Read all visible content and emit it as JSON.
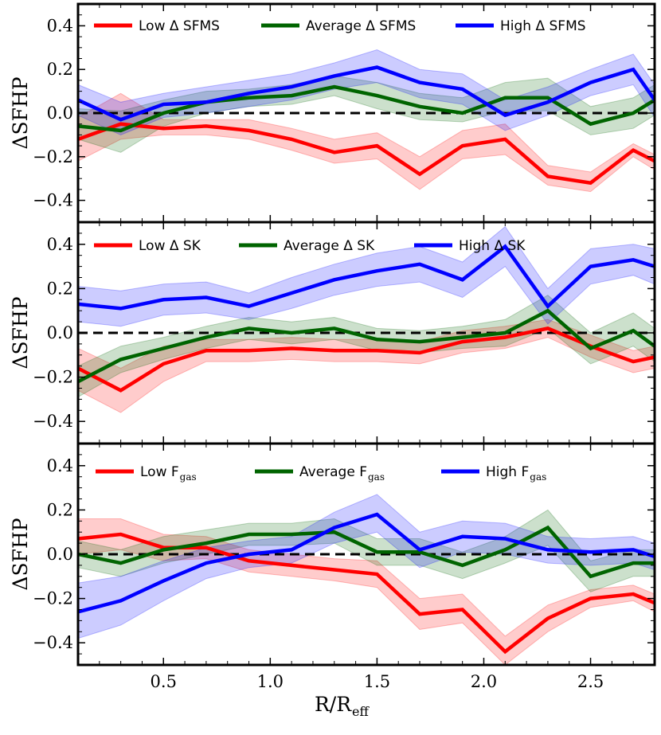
{
  "chart_data": [
    {
      "type": "line",
      "id": "sfms",
      "ylabel": "ΔSFHP",
      "xlim": [
        0.1,
        2.8
      ],
      "ylim": [
        -0.5,
        0.5
      ],
      "x": [
        0.1,
        0.3,
        0.5,
        0.7,
        0.9,
        1.1,
        1.3,
        1.5,
        1.7,
        1.9,
        2.1,
        2.3,
        2.5,
        2.7,
        2.8
      ],
      "reference_line": 0.0,
      "series": [
        {
          "name": "Low",
          "label_main": "Low Δ SFMS",
          "label_sub": "",
          "color": "#ff0000",
          "values": [
            -0.12,
            -0.05,
            -0.07,
            -0.06,
            -0.08,
            -0.12,
            -0.18,
            -0.15,
            -0.28,
            -0.15,
            -0.12,
            -0.29,
            -0.32,
            -0.17,
            -0.22
          ],
          "lower": [
            -0.22,
            -0.12,
            -0.1,
            -0.1,
            -0.12,
            -0.17,
            -0.23,
            -0.21,
            -0.35,
            -0.21,
            -0.19,
            -0.33,
            -0.36,
            -0.2,
            -0.26
          ],
          "upper": [
            -0.02,
            0.09,
            -0.03,
            -0.03,
            -0.03,
            -0.07,
            -0.12,
            -0.09,
            -0.2,
            -0.08,
            -0.05,
            -0.24,
            -0.27,
            -0.14,
            -0.19
          ]
        },
        {
          "name": "Average",
          "label_main": "Average Δ SFMS",
          "label_sub": "",
          "color": "#006400",
          "values": [
            -0.06,
            -0.08,
            0.0,
            0.05,
            0.07,
            0.08,
            0.12,
            0.08,
            0.03,
            0.0,
            0.07,
            0.07,
            -0.05,
            0.0,
            0.06
          ],
          "lower": [
            -0.12,
            -0.18,
            -0.06,
            0.0,
            0.03,
            0.04,
            0.08,
            0.02,
            -0.03,
            -0.04,
            0.01,
            0.01,
            -0.1,
            -0.07,
            -0.01
          ],
          "upper": [
            0.02,
            0.01,
            0.06,
            0.1,
            0.11,
            0.13,
            0.17,
            0.14,
            0.09,
            0.07,
            0.14,
            0.16,
            0.03,
            0.07,
            0.13
          ]
        },
        {
          "name": "High",
          "label_main": "High Δ SFMS",
          "label_sub": "",
          "color": "#0000ff",
          "values": [
            0.06,
            -0.03,
            0.04,
            0.05,
            0.09,
            0.12,
            0.17,
            0.21,
            0.14,
            0.11,
            -0.01,
            0.05,
            0.14,
            0.2,
            0.06
          ],
          "lower": [
            -0.01,
            -0.1,
            -0.02,
            0.0,
            0.03,
            0.06,
            0.11,
            0.14,
            0.07,
            0.04,
            -0.08,
            -0.01,
            0.08,
            0.13,
            -0.02
          ],
          "upper": [
            0.13,
            0.05,
            0.09,
            0.12,
            0.15,
            0.18,
            0.23,
            0.29,
            0.2,
            0.18,
            0.06,
            0.12,
            0.2,
            0.27,
            0.13
          ]
        }
      ]
    },
    {
      "type": "line",
      "id": "sk",
      "ylabel": "ΔSFHP",
      "xlim": [
        0.1,
        2.8
      ],
      "ylim": [
        -0.5,
        0.5
      ],
      "x": [
        0.1,
        0.3,
        0.5,
        0.7,
        0.9,
        1.1,
        1.3,
        1.5,
        1.7,
        1.9,
        2.1,
        2.3,
        2.5,
        2.7,
        2.8
      ],
      "reference_line": 0.0,
      "series": [
        {
          "name": "Low",
          "label_main": "Low Δ SK",
          "label_sub": "",
          "color": "#ff0000",
          "values": [
            -0.16,
            -0.26,
            -0.14,
            -0.08,
            -0.08,
            -0.07,
            -0.08,
            -0.08,
            -0.09,
            -0.04,
            -0.02,
            0.02,
            -0.06,
            -0.13,
            -0.11
          ],
          "lower": [
            -0.26,
            -0.36,
            -0.22,
            -0.13,
            -0.13,
            -0.12,
            -0.13,
            -0.13,
            -0.14,
            -0.09,
            -0.07,
            -0.02,
            -0.11,
            -0.18,
            -0.16
          ],
          "upper": [
            -0.07,
            -0.16,
            -0.06,
            -0.03,
            -0.03,
            -0.02,
            -0.03,
            -0.03,
            -0.04,
            0.01,
            0.03,
            0.06,
            -0.01,
            -0.08,
            -0.06
          ]
        },
        {
          "name": "Average",
          "label_main": "Average Δ SK",
          "label_sub": "",
          "color": "#006400",
          "values": [
            -0.22,
            -0.12,
            -0.07,
            -0.02,
            0.02,
            0.0,
            0.02,
            -0.03,
            -0.04,
            -0.02,
            0.0,
            0.1,
            -0.07,
            0.01,
            -0.06
          ],
          "lower": [
            -0.29,
            -0.18,
            -0.12,
            -0.07,
            -0.03,
            -0.05,
            -0.03,
            -0.08,
            -0.09,
            -0.07,
            -0.06,
            0.02,
            -0.14,
            -0.06,
            -0.13
          ],
          "upper": [
            -0.15,
            -0.06,
            -0.02,
            0.03,
            0.07,
            0.05,
            0.07,
            0.02,
            0.01,
            0.03,
            0.06,
            0.17,
            0.0,
            0.09,
            0.02
          ]
        },
        {
          "name": "High",
          "label_main": "High Δ SK",
          "label_sub": "",
          "color": "#0000ff",
          "values": [
            0.13,
            0.11,
            0.15,
            0.16,
            0.12,
            0.18,
            0.24,
            0.28,
            0.31,
            0.24,
            0.39,
            0.12,
            0.3,
            0.33,
            0.3
          ],
          "lower": [
            0.05,
            0.03,
            0.08,
            0.09,
            0.06,
            0.11,
            0.17,
            0.21,
            0.23,
            0.16,
            0.3,
            0.04,
            0.22,
            0.26,
            0.22
          ],
          "upper": [
            0.21,
            0.19,
            0.22,
            0.23,
            0.18,
            0.25,
            0.31,
            0.36,
            0.39,
            0.32,
            0.48,
            0.2,
            0.38,
            0.4,
            0.38
          ]
        }
      ]
    },
    {
      "type": "line",
      "id": "fgas",
      "ylabel": "ΔSFHP",
      "xlabel": "R/R",
      "xlabel_sub": "eff",
      "xlim": [
        0.1,
        2.8
      ],
      "ylim": [
        -0.5,
        0.5
      ],
      "x": [
        0.1,
        0.3,
        0.5,
        0.7,
        0.9,
        1.1,
        1.3,
        1.5,
        1.7,
        1.9,
        2.1,
        2.3,
        2.5,
        2.7,
        2.8
      ],
      "xticks": [
        "0.5",
        "1.0",
        "1.5",
        "2.0",
        "2.5"
      ],
      "reference_line": 0.0,
      "series": [
        {
          "name": "Low",
          "label_main": "Low F",
          "label_sub": "gas",
          "color": "#ff0000",
          "values": [
            0.07,
            0.09,
            0.03,
            0.03,
            -0.03,
            -0.05,
            -0.07,
            -0.09,
            -0.27,
            -0.25,
            -0.44,
            -0.29,
            -0.2,
            -0.18,
            -0.22
          ],
          "lower": [
            0.0,
            0.02,
            -0.03,
            -0.02,
            -0.08,
            -0.1,
            -0.12,
            -0.15,
            -0.34,
            -0.31,
            -0.5,
            -0.35,
            -0.24,
            -0.21,
            -0.26
          ],
          "upper": [
            0.16,
            0.16,
            0.09,
            0.08,
            0.02,
            0.0,
            -0.02,
            -0.03,
            -0.2,
            -0.18,
            -0.37,
            -0.23,
            -0.16,
            -0.14,
            -0.18
          ]
        },
        {
          "name": "Average",
          "label_main": "Average F",
          "label_sub": "gas",
          "color": "#006400",
          "values": [
            0.0,
            -0.04,
            0.02,
            0.05,
            0.09,
            0.09,
            0.1,
            0.01,
            0.01,
            -0.05,
            0.02,
            0.12,
            -0.1,
            -0.04,
            -0.04
          ],
          "lower": [
            -0.06,
            -0.1,
            -0.04,
            0.0,
            0.04,
            0.04,
            0.05,
            -0.05,
            -0.05,
            -0.11,
            -0.04,
            0.04,
            -0.17,
            -0.1,
            -0.1
          ],
          "upper": [
            0.06,
            0.02,
            0.08,
            0.11,
            0.14,
            0.14,
            0.16,
            0.07,
            0.07,
            0.01,
            0.08,
            0.2,
            -0.03,
            0.02,
            0.02
          ]
        },
        {
          "name": "High",
          "label_main": "High F",
          "label_sub": "gas",
          "color": "#0000ff",
          "values": [
            -0.26,
            -0.21,
            -0.12,
            -0.04,
            0.0,
            0.02,
            0.12,
            0.18,
            0.02,
            0.08,
            0.07,
            0.02,
            0.01,
            0.02,
            -0.01
          ],
          "lower": [
            -0.38,
            -0.32,
            -0.21,
            -0.11,
            -0.06,
            -0.04,
            0.05,
            0.1,
            -0.06,
            0.01,
            0.0,
            -0.04,
            -0.05,
            -0.04,
            -0.07
          ],
          "upper": [
            -0.13,
            -0.1,
            -0.03,
            0.03,
            0.06,
            0.08,
            0.19,
            0.27,
            0.1,
            0.15,
            0.14,
            0.08,
            0.07,
            0.08,
            0.05
          ]
        }
      ]
    }
  ],
  "ytick_labels": [
    "0.4",
    "0.2",
    "0.0",
    "−0.2",
    "−0.4"
  ],
  "ytick_values": [
    0.4,
    0.2,
    0.0,
    -0.2,
    -0.4
  ]
}
